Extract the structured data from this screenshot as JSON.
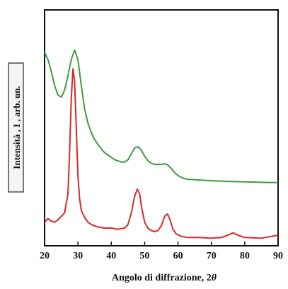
{
  "chart_data": {
    "type": "line",
    "xlabel": "Angolo di diffrazione, 2",
    "xlabel_symbol": "θ",
    "ylabel": "Intensità , I , arb. un.",
    "xlim": [
      20,
      90
    ],
    "ylim": [
      0,
      100
    ],
    "y_ticks_labeled": false,
    "x_ticks": [
      20,
      30,
      40,
      50,
      60,
      70,
      80,
      90
    ],
    "grid": false,
    "series": [
      {
        "color": "#3f9a3f",
        "points": [
          [
            20,
            82
          ],
          [
            21,
            79
          ],
          [
            22,
            74
          ],
          [
            23,
            68
          ],
          [
            24,
            64
          ],
          [
            25,
            63
          ],
          [
            26,
            66
          ],
          [
            27,
            72
          ],
          [
            28,
            79
          ],
          [
            29,
            83
          ],
          [
            30,
            79
          ],
          [
            31,
            68
          ],
          [
            32,
            58
          ],
          [
            33,
            52
          ],
          [
            34,
            48
          ],
          [
            35,
            45
          ],
          [
            36,
            43
          ],
          [
            37,
            41
          ],
          [
            38,
            39.5
          ],
          [
            39,
            38.5
          ],
          [
            40,
            37.5
          ],
          [
            41,
            36.5
          ],
          [
            42,
            36
          ],
          [
            43,
            35.5
          ],
          [
            44,
            35.5
          ],
          [
            45,
            36.5
          ],
          [
            46,
            39
          ],
          [
            47,
            41.5
          ],
          [
            48,
            42
          ],
          [
            49,
            40.5
          ],
          [
            50,
            38
          ],
          [
            51,
            36
          ],
          [
            52,
            35
          ],
          [
            53,
            34.5
          ],
          [
            54,
            34.5
          ],
          [
            55,
            34.5
          ],
          [
            56,
            34.8
          ],
          [
            57,
            34.2
          ],
          [
            58,
            32.8
          ],
          [
            59,
            31
          ],
          [
            60,
            29.8
          ],
          [
            61,
            29
          ],
          [
            62,
            28.5
          ],
          [
            63,
            28.2
          ],
          [
            65,
            28
          ],
          [
            70,
            27.6
          ],
          [
            75,
            27.3
          ],
          [
            80,
            27.1
          ],
          [
            85,
            26.9
          ],
          [
            90,
            26.8
          ]
        ]
      },
      {
        "color": "#d42a2a",
        "points": [
          [
            20,
            10
          ],
          [
            21,
            11.5
          ],
          [
            22,
            10.5
          ],
          [
            23,
            10
          ],
          [
            24,
            11
          ],
          [
            25,
            12.5
          ],
          [
            26,
            14
          ],
          [
            27,
            22
          ],
          [
            27.5,
            40
          ],
          [
            28,
            62
          ],
          [
            28.5,
            75
          ],
          [
            29,
            70
          ],
          [
            29.5,
            50
          ],
          [
            30,
            30
          ],
          [
            30.5,
            20
          ],
          [
            31,
            15
          ],
          [
            32,
            12
          ],
          [
            33,
            10
          ],
          [
            34,
            9
          ],
          [
            36,
            8
          ],
          [
            38,
            7.5
          ],
          [
            40,
            7.5
          ],
          [
            42,
            7
          ],
          [
            44,
            7.5
          ],
          [
            45,
            9
          ],
          [
            46,
            14
          ],
          [
            47,
            21
          ],
          [
            47.8,
            24
          ],
          [
            48.5,
            22
          ],
          [
            49,
            17
          ],
          [
            50,
            10
          ],
          [
            51,
            7.5
          ],
          [
            52,
            6.5
          ],
          [
            53,
            6
          ],
          [
            54,
            6.5
          ],
          [
            55,
            8.5
          ],
          [
            56,
            12.5
          ],
          [
            56.8,
            13.5
          ],
          [
            57.5,
            11.5
          ],
          [
            58.5,
            7
          ],
          [
            59.5,
            5
          ],
          [
            61,
            4
          ],
          [
            63,
            3.5
          ],
          [
            66,
            3.5
          ],
          [
            70,
            3.2
          ],
          [
            73,
            3.5
          ],
          [
            75,
            4.5
          ],
          [
            76.5,
            5.5
          ],
          [
            78,
            4.5
          ],
          [
            80,
            3.5
          ],
          [
            85,
            3.2
          ],
          [
            88,
            4
          ],
          [
            90,
            4.5
          ]
        ]
      }
    ]
  }
}
